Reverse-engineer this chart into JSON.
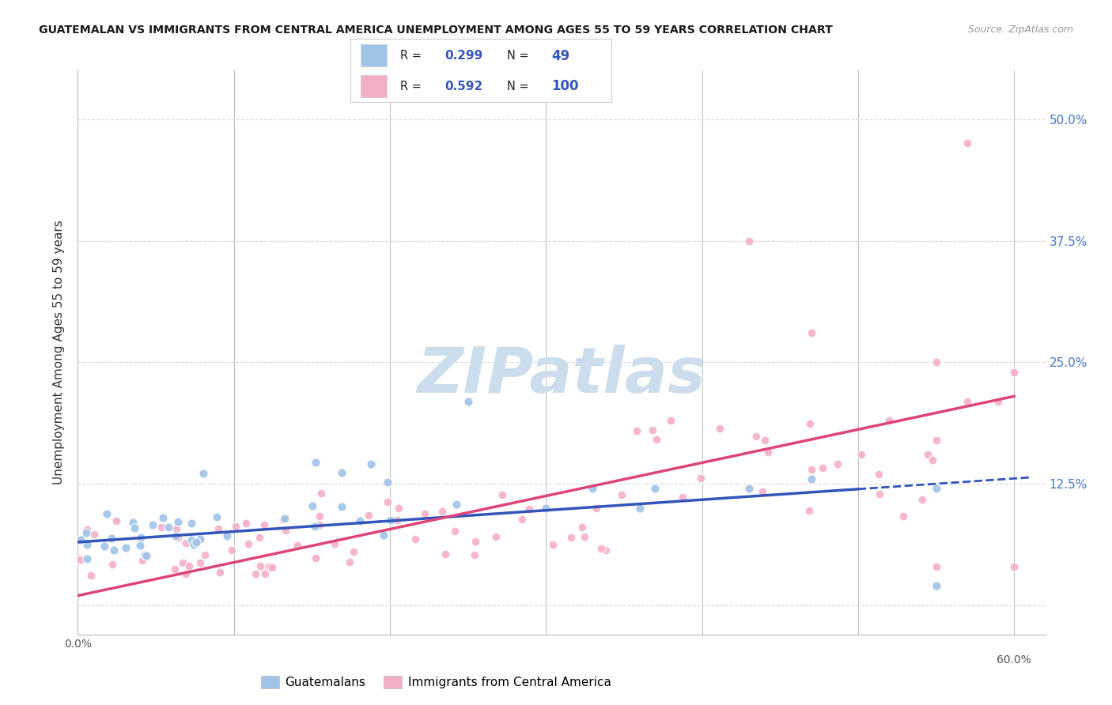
{
  "title": "GUATEMALAN VS IMMIGRANTS FROM CENTRAL AMERICA UNEMPLOYMENT AMONG AGES 55 TO 59 YEARS CORRELATION CHART",
  "source": "Source: ZipAtlas.com",
  "ylabel": "Unemployment Among Ages 55 to 59 years",
  "xlim": [
    0.0,
    0.62
  ],
  "ylim": [
    -0.03,
    0.55
  ],
  "ytick_positions": [
    0.0,
    0.125,
    0.25,
    0.375,
    0.5
  ],
  "watermark": "ZIPatlas",
  "watermark_color": "#ccdeed",
  "background_color": "#ffffff",
  "grid_color": "#d8d8d8",
  "blue_color": "#a0c4e8",
  "pink_color": "#f4afc8",
  "blue_line_color": "#3355bb",
  "pink_line_color": "#dd4477",
  "blue_R": 0.299,
  "blue_N": 49,
  "pink_R": 0.592,
  "pink_N": 100,
  "legend_color": "#3355bb",
  "right_label_color": "#4477cc",
  "blue_trend_x0": 0.0,
  "blue_trend_y0": 0.065,
  "blue_trend_x1": 0.55,
  "blue_trend_y1": 0.125,
  "pink_trend_x0": 0.0,
  "pink_trend_y0": 0.01,
  "pink_trend_x1": 0.6,
  "pink_trend_y1": 0.215
}
